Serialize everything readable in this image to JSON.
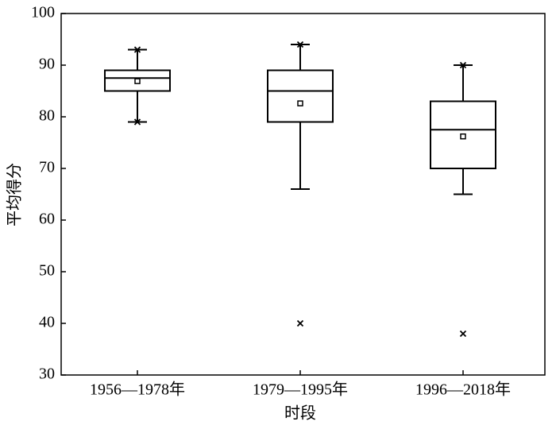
{
  "chart_data": {
    "type": "box",
    "x_label": "时段",
    "y_label": "平均得分",
    "categories": [
      "1956—1978年",
      "1979—1995年",
      "1996—2018年"
    ],
    "whisker_low": [
      79,
      66,
      65
    ],
    "q1": [
      85,
      79,
      70
    ],
    "median": [
      87.5,
      85,
      77.5
    ],
    "q3": [
      89,
      89,
      83
    ],
    "whisker_high": [
      93,
      94,
      90
    ],
    "mean": [
      86.9,
      82.6,
      76.2
    ],
    "extremes": [
      [
        79,
        93
      ],
      [
        94,
        40
      ],
      [
        90,
        38
      ]
    ],
    "color": "#000000",
    "ylim": [
      30,
      100
    ],
    "yticks": [
      30,
      40,
      50,
      60,
      70,
      80,
      90,
      100
    ]
  }
}
